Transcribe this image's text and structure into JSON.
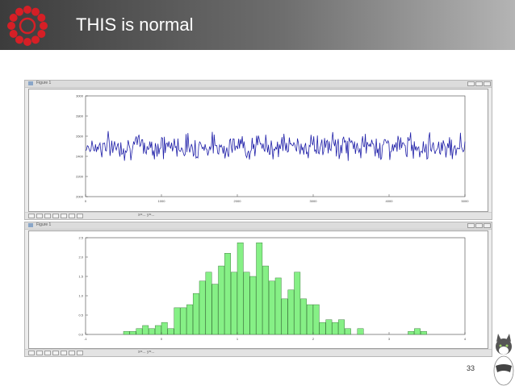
{
  "slide": {
    "title": "THIS is normal",
    "page_number": "33"
  },
  "windows": [
    {
      "title": "Figure 1",
      "toolbar_coords": "x=...  y=..."
    },
    {
      "title": "Figure 1",
      "toolbar_coords": "x=...  y=..."
    }
  ],
  "chart_data": [
    {
      "type": "line",
      "yticks": [
        "3000",
        "2800",
        "2600",
        "2400",
        "2200",
        "2000"
      ],
      "xticks": [
        "0",
        "1000",
        "2000",
        "3000",
        "4000",
        "5000"
      ],
      "xlim": [
        0,
        5000
      ],
      "ylim": [
        2000,
        3000
      ],
      "series_color": "#1f1fa8"
    },
    {
      "type": "bar",
      "yticks": [
        "2.5",
        "2.0",
        "1.5",
        "1.0",
        "0.5",
        "0.0"
      ],
      "xticks": [
        "-1",
        "0",
        "1",
        "2",
        "3",
        "4"
      ],
      "ylim": [
        0,
        2.5
      ],
      "values": [
        0,
        0,
        0,
        0,
        0,
        0,
        0.08,
        0.08,
        0.15,
        0.23,
        0.15,
        0.23,
        0.31,
        0.15,
        0.69,
        0.69,
        0.77,
        1.06,
        1.38,
        1.61,
        1.3,
        1.77,
        2.1,
        1.61,
        2.37,
        1.61,
        1.5,
        2.37,
        1.77,
        1.38,
        1.46,
        0.92,
        1.15,
        1.61,
        0.92,
        0.77,
        0.77,
        0.31,
        0.38,
        0.31,
        0.38,
        0.15,
        0,
        0.15,
        0,
        0,
        0,
        0,
        0,
        0,
        0,
        0.08,
        0.15,
        0.08,
        0,
        0,
        0,
        0,
        0,
        0
      ],
      "bar_color": "#86f086"
    }
  ]
}
